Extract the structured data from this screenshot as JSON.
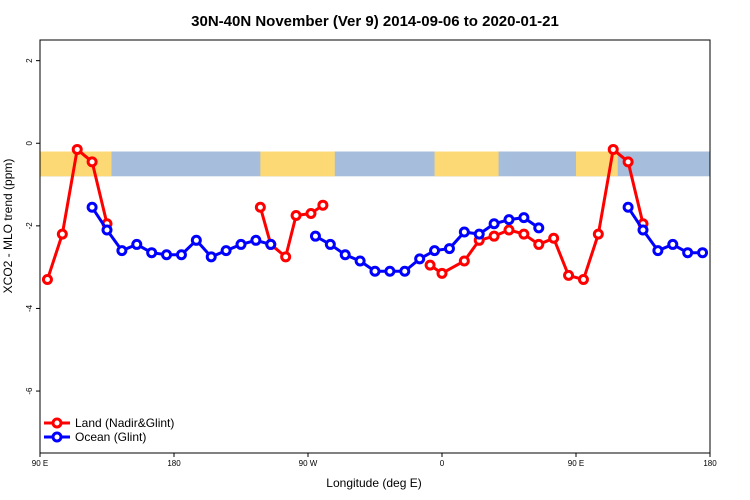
{
  "chart_data": {
    "type": "line",
    "title": "30N-40N November (Ver 9)   2014-09-06 to 2020-01-21",
    "xlabel": "Longitude (deg E)",
    "ylabel": "XCO2 - MLO trend (ppm)",
    "x_range": [
      90,
      540
    ],
    "ylim": [
      -7.5,
      2.5
    ],
    "x_ticks": [
      {
        "value": 90,
        "label": "90 E"
      },
      {
        "value": 180,
        "label": "180"
      },
      {
        "value": 270,
        "label": "90 W"
      },
      {
        "value": 360,
        "label": "0"
      },
      {
        "value": 450,
        "label": "90 E"
      },
      {
        "value": 540,
        "label": "180"
      }
    ],
    "y_ticks": [
      {
        "value": 2,
        "label": "2"
      },
      {
        "value": 0,
        "label": "0"
      },
      {
        "value": -2,
        "label": "-2"
      },
      {
        "value": -4,
        "label": "-4"
      },
      {
        "value": -6,
        "label": "-6"
      }
    ],
    "land_ocean_band": {
      "y_top": -0.2,
      "y_bottom": -0.8,
      "ocean_color": "#a6bddb",
      "land_color": "#fdd976",
      "land_spans": [
        [
          90,
          138
        ],
        [
          238,
          288
        ],
        [
          355,
          398
        ],
        [
          450,
          478
        ]
      ]
    },
    "series": [
      {
        "name": "Land (Nadir&Glint)",
        "color": "#ff0000",
        "segments": [
          {
            "x": [
              95,
              105,
              115,
              125,
              135
            ],
            "y": [
              -3.3,
              -2.2,
              -0.15,
              -0.45,
              -1.95
            ]
          },
          {
            "x": [
              238,
              245,
              255,
              262,
              272,
              280,
              288
            ],
            "y": [
              -1.55,
              -2.45,
              -2.75,
              -1.75,
              -1.7,
              -1.5,
              null
            ]
          },
          {
            "x": [
              352,
              360,
              375,
              385,
              395,
              405,
              415,
              425,
              435,
              445,
              455,
              465,
              475,
              485,
              495
            ],
            "y": [
              -2.95,
              -3.15,
              -2.85,
              -2.35,
              -2.25,
              -2.1,
              -2.2,
              -2.45,
              -2.3,
              -3.2,
              -3.3,
              -2.2,
              -0.15,
              -0.45,
              -1.95
            ]
          }
        ]
      },
      {
        "name": "Ocean (Glint)",
        "color": "#0000ff",
        "segments": [
          {
            "x": [
              125,
              135,
              145,
              155,
              165,
              175,
              185,
              195,
              205,
              215,
              225,
              235,
              245
            ],
            "y": [
              -1.55,
              -2.1,
              -2.6,
              -2.45,
              -2.65,
              -2.7,
              -2.7,
              -2.35,
              -2.75,
              -2.6,
              -2.45,
              -2.35,
              -2.45
            ]
          },
          {
            "x": [
              275,
              285,
              295,
              305,
              315,
              325,
              335,
              345,
              355,
              365,
              375,
              385,
              395,
              405,
              415,
              425
            ],
            "y": [
              -2.25,
              -2.45,
              -2.7,
              -2.85,
              -3.1,
              -3.1,
              -3.1,
              -2.8,
              -2.6,
              -2.55,
              -2.15,
              -2.2,
              -1.95,
              -1.85,
              -1.8,
              -2.05
            ]
          },
          {
            "x": [
              485,
              495,
              505,
              515,
              525,
              535
            ],
            "y": [
              -1.55,
              -2.1,
              -2.6,
              -2.45,
              -2.65,
              -2.65
            ]
          }
        ]
      }
    ],
    "legend_position": "bottom-left"
  }
}
